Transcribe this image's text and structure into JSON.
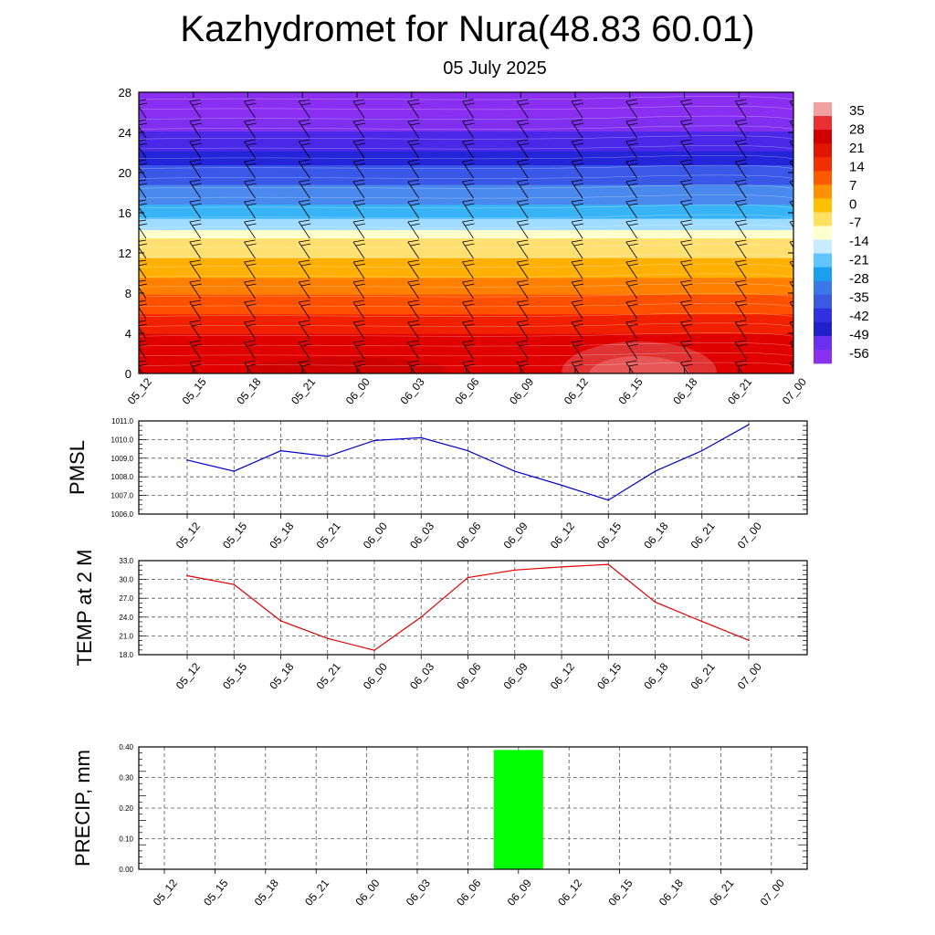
{
  "title": "Kazhydromet for Nura(48.83 60.01)",
  "subtitle": "05 July 2025",
  "chart_data": [
    {
      "type": "heatmap",
      "name": "vertical-temperature-section",
      "x_ticks": [
        "05_12",
        "05_15",
        "05_18",
        "05_21",
        "06_00",
        "06_03",
        "06_06",
        "06_09",
        "06_12",
        "06_15",
        "06_18",
        "06_21",
        "07_00"
      ],
      "y_ticks": [
        0,
        4,
        8,
        12,
        16,
        20,
        24,
        28
      ],
      "ylim": [
        0,
        28
      ],
      "colorbar_labels": [
        35,
        28,
        21,
        14,
        7,
        0,
        -7,
        -14,
        -21,
        -28,
        -35,
        -42,
        -49,
        -56
      ],
      "colorbar_colors": [
        "#f2a0a0",
        "#e83030",
        "#d00000",
        "#e01500",
        "#f03000",
        "#ff5a00",
        "#ff9000",
        "#ffc000",
        "#ffe060",
        "#ffffd0",
        "#c8ecff",
        "#60c4ff",
        "#1aa0ee",
        "#3a78e8",
        "#3a58e0",
        "#3030e0",
        "#2020c8",
        "#6a30f0",
        "#8a30f0"
      ],
      "colormap": "temperature (red = warm, blue/violet = cold)",
      "overlay": "wind barbs",
      "grid": false
    },
    {
      "type": "line",
      "name": "pmsl",
      "ylabel": "PMSL",
      "categories": [
        "05_12",
        "05_15",
        "05_18",
        "05_21",
        "06_00",
        "06_03",
        "06_06",
        "06_09",
        "06_12",
        "06_15",
        "06_18",
        "06_21",
        "07_00"
      ],
      "values": [
        1008.9,
        1008.3,
        1009.4,
        1009.1,
        1009.95,
        1010.1,
        1009.4,
        1008.3,
        1007.55,
        1006.75,
        1008.3,
        1009.4,
        1010.8
      ],
      "y_ticks": [
        "1011.0",
        "1010.0",
        "1009.0",
        "1008.0",
        "1007.0",
        "1006.0"
      ],
      "ylim": [
        1006.0,
        1011.0
      ],
      "color": "#0000cc",
      "grid": true
    },
    {
      "type": "line",
      "name": "temp-2m",
      "ylabel": "TEMP at 2 M",
      "categories": [
        "05_12",
        "05_15",
        "05_18",
        "05_21",
        "06_00",
        "06_03",
        "06_06",
        "06_09",
        "06_12",
        "06_15",
        "06_18",
        "06_21",
        "07_00"
      ],
      "values": [
        30.6,
        29.2,
        23.4,
        20.6,
        18.7,
        24.0,
        30.3,
        31.5,
        32.0,
        32.4,
        26.4,
        23.3,
        20.3
      ],
      "y_ticks": [
        "33.0",
        "30.0",
        "27.0",
        "24.0",
        "21.0",
        "18.0"
      ],
      "ylim": [
        18.0,
        33.0
      ],
      "color": "#e00000",
      "grid": true
    },
    {
      "type": "bar",
      "name": "precip",
      "ylabel": "PRECIP, mm",
      "categories": [
        "05_12",
        "05_15",
        "05_18",
        "05_21",
        "06_00",
        "06_03",
        "06_06",
        "06_09",
        "06_12",
        "06_15",
        "06_18",
        "06_21",
        "07_00"
      ],
      "values": [
        0,
        0,
        0,
        0,
        0,
        0,
        0,
        0.39,
        0,
        0,
        0,
        0,
        0
      ],
      "y_ticks": [
        "0.40",
        "0.30",
        "0.20",
        "0.10",
        "0.00"
      ],
      "ylim": [
        0,
        0.4
      ],
      "color": "#00ff00",
      "grid": true
    }
  ]
}
